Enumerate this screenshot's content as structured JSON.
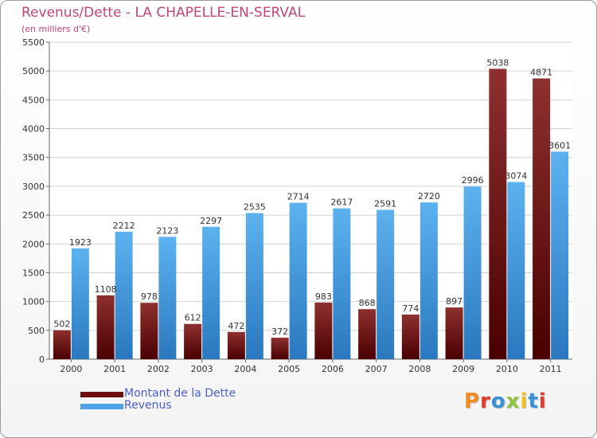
{
  "chart_title": "Revenus/Dette - LA CHAPELLE-EN-SERVAL",
  "chart_subtitle": "(en milliers d'€)",
  "logo": {
    "text": "Proxiti",
    "letter_colors": [
      "#f28a1e",
      "#e23a2a",
      "#3b8fd6",
      "#8cc63f",
      "#f2c01e",
      "#3b8fd6",
      "#e23a2a"
    ]
  },
  "chart_data": {
    "type": "bar",
    "title": "Revenus/Dette - LA CHAPELLE-EN-SERVAL",
    "subtitle": "(en milliers d'€)",
    "categories": [
      "2000",
      "2001",
      "2002",
      "2003",
      "2004",
      "2005",
      "2006",
      "2007",
      "2008",
      "2009",
      "2010",
      "2011"
    ],
    "series": [
      {
        "name": "Montant de la Dette",
        "color": "#7a1a1a",
        "values": [
          502,
          1108,
          978,
          612,
          472,
          372,
          983,
          868,
          774,
          897,
          5038,
          4871
        ]
      },
      {
        "name": "Revenus",
        "color": "#4da3e6",
        "values": [
          1923,
          2212,
          2123,
          2297,
          2535,
          2714,
          2617,
          2591,
          2720,
          2996,
          3074,
          3601
        ]
      }
    ],
    "ylim": [
      0,
      5500
    ],
    "yticks": [
      0,
      500,
      1000,
      1500,
      2000,
      2500,
      3000,
      3500,
      4000,
      4500,
      5000,
      5500
    ],
    "grid": true,
    "legend": "bottom-left"
  }
}
